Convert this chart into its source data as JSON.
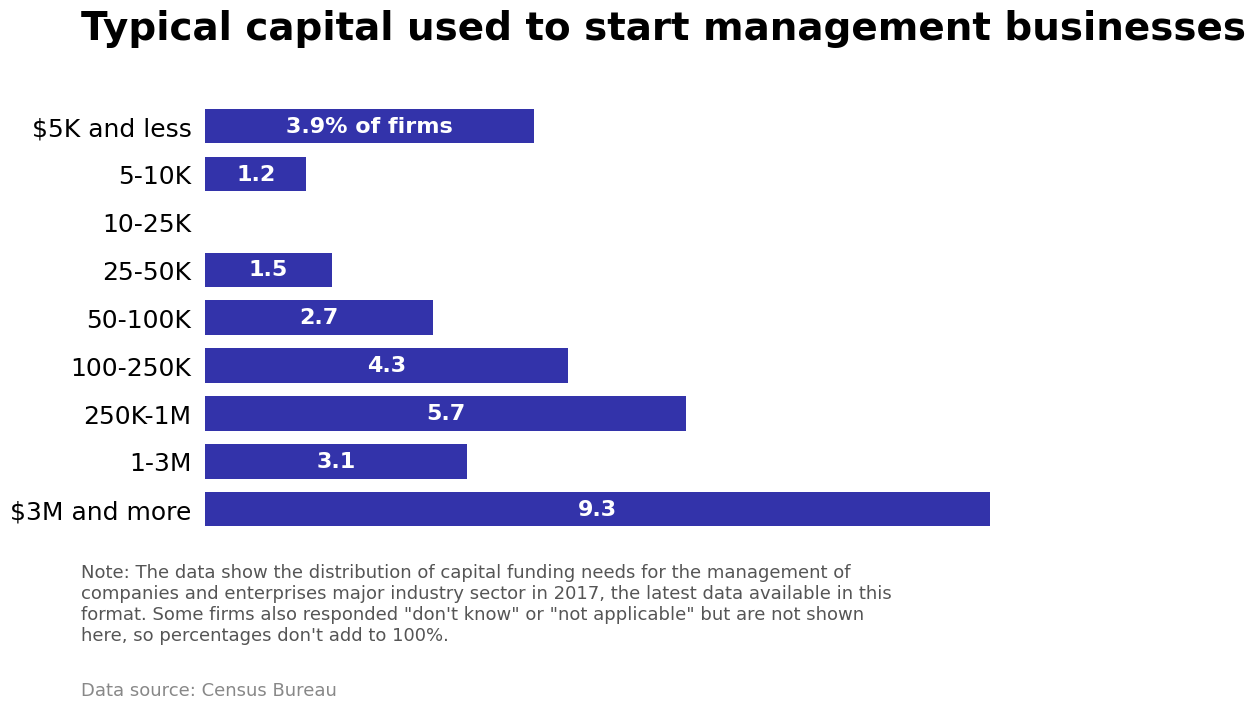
{
  "title": "Typical capital used to start management businesses",
  "categories": [
    "$5K and less",
    "5-10K",
    "10-25K",
    "25-50K",
    "50-100K",
    "100-250K",
    "250K-1M",
    "1-3M",
    "$3M and more"
  ],
  "values": [
    3.9,
    1.2,
    0.0,
    1.5,
    2.7,
    4.3,
    5.7,
    3.1,
    9.3
  ],
  "bar_color": "#3333aa",
  "bar_labels": [
    "3.9% of firms",
    "1.2",
    "",
    "1.5",
    "2.7",
    "4.3",
    "5.7",
    "3.1",
    "9.3"
  ],
  "label_fontsize": 16,
  "title_fontsize": 28,
  "category_fontsize": 18,
  "note_text": "Note: The data show the distribution of capital funding needs for the management of\ncompanies and enterprises major industry sector in 2017, the latest data available in this\nformat. Some firms also responded \"don't know\" or \"not applicable\" but are not shown\nhere, so percentages don't add to 100%.",
  "source_text": "Data source: Census Bureau",
  "background_color": "#ffffff",
  "xlim": [
    0,
    10.5
  ],
  "note_fontsize": 13,
  "source_fontsize": 13
}
